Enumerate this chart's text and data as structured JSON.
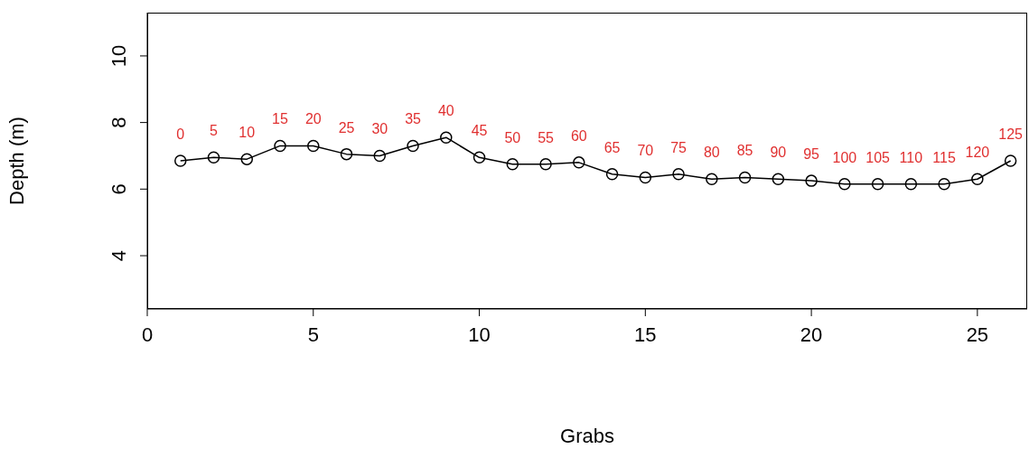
{
  "chart_data": {
    "type": "line",
    "xlabel": "Grabs",
    "ylabel": "Depth (m)",
    "x": [
      1,
      2,
      3,
      4,
      5,
      6,
      7,
      8,
      9,
      10,
      11,
      12,
      13,
      14,
      15,
      16,
      17,
      18,
      19,
      20,
      21,
      22,
      23,
      24,
      25,
      26
    ],
    "series": [
      {
        "color": "#000000",
        "values": [
          6.85,
          6.95,
          6.9,
          7.3,
          7.3,
          7.05,
          7.0,
          7.3,
          7.55,
          6.95,
          6.75,
          6.75,
          6.8,
          6.45,
          6.35,
          6.45,
          6.3,
          6.35,
          6.3,
          6.25,
          6.15,
          6.15,
          6.15,
          6.15,
          6.3,
          6.85
        ]
      }
    ],
    "xlim": [
      0,
      26.5
    ],
    "xticks": [
      0,
      5,
      10,
      15,
      20,
      25
    ],
    "ylim": [
      2.4,
      11.3
    ],
    "yticks": [
      4,
      6,
      8,
      10
    ],
    "grid": false,
    "legend": false,
    "marker": "circle",
    "line_style": "solid",
    "annotations": [
      {
        "text": "0",
        "x": 1,
        "y": 6.85
      },
      {
        "text": "5",
        "x": 2,
        "y": 6.95
      },
      {
        "text": "10",
        "x": 3,
        "y": 6.9
      },
      {
        "text": "15",
        "x": 4,
        "y": 7.3
      },
      {
        "text": "20",
        "x": 5,
        "y": 7.3
      },
      {
        "text": "25",
        "x": 6,
        "y": 7.05
      },
      {
        "text": "30",
        "x": 7,
        "y": 7.0
      },
      {
        "text": "35",
        "x": 8,
        "y": 7.3
      },
      {
        "text": "40",
        "x": 9,
        "y": 7.55
      },
      {
        "text": "45",
        "x": 10,
        "y": 6.95
      },
      {
        "text": "50",
        "x": 11,
        "y": 6.75
      },
      {
        "text": "55",
        "x": 12,
        "y": 6.75
      },
      {
        "text": "60",
        "x": 13,
        "y": 6.8
      },
      {
        "text": "65",
        "x": 14,
        "y": 6.45
      },
      {
        "text": "70",
        "x": 15,
        "y": 6.35
      },
      {
        "text": "75",
        "x": 16,
        "y": 6.45
      },
      {
        "text": "80",
        "x": 17,
        "y": 6.3
      },
      {
        "text": "85",
        "x": 18,
        "y": 6.35
      },
      {
        "text": "90",
        "x": 19,
        "y": 6.3
      },
      {
        "text": "95",
        "x": 20,
        "y": 6.25
      },
      {
        "text": "100",
        "x": 21,
        "y": 6.15
      },
      {
        "text": "105",
        "x": 22,
        "y": 6.15
      },
      {
        "text": "110",
        "x": 23,
        "y": 6.15
      },
      {
        "text": "115",
        "x": 24,
        "y": 6.15
      },
      {
        "text": "120",
        "x": 25,
        "y": 6.3
      },
      {
        "text": "125",
        "x": 26,
        "y": 6.85
      }
    ]
  }
}
